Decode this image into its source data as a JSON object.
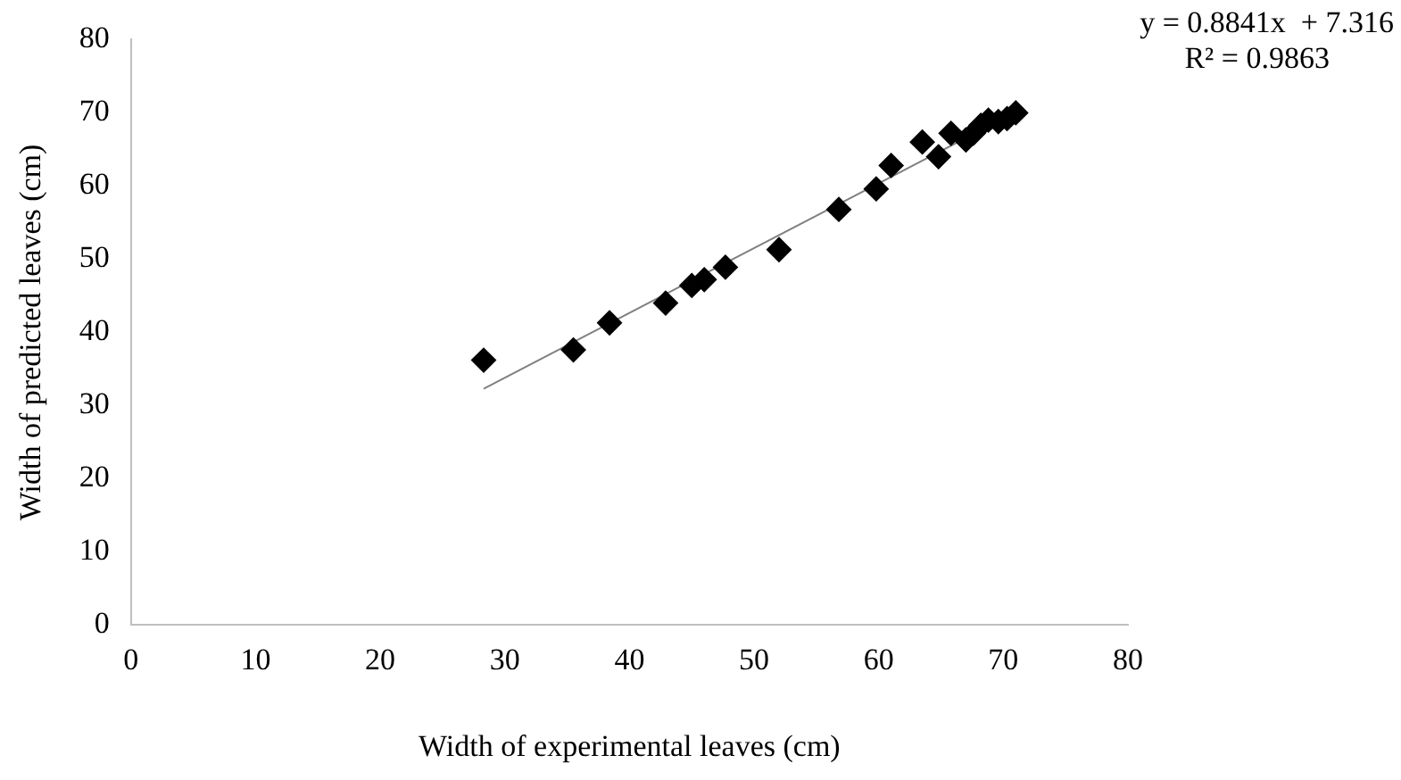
{
  "chart_data": {
    "type": "scatter",
    "xlabel": "Width of experimental leaves (cm)",
    "ylabel": "Width of predicted leaves (cm)",
    "annotations": [
      "y = 0.8841x  + 7.316",
      "R² = 0.9863"
    ],
    "series": [
      {
        "type": "scatter",
        "color": "#000000",
        "marker": "diamond",
        "x": [
          28.3,
          35.5,
          38.4,
          42.9,
          45,
          46,
          47.7,
          52,
          56.8,
          59.8,
          61,
          63.5,
          64.8,
          65.8,
          67,
          67.6,
          68.2,
          68.8,
          69.6,
          70.3,
          71
        ],
        "values": [
          36.2,
          37.6,
          41.3,
          44.0,
          46.4,
          47.2,
          48.9,
          51.3,
          56.8,
          59.6,
          62.8,
          66,
          64,
          67.2,
          66.3,
          67.2,
          68.3,
          69,
          68.8,
          69.2,
          70
        ]
      },
      {
        "type": "line",
        "color": "#808080",
        "marker": "none",
        "x": [
          28.3,
          71
        ],
        "values": [
          32.3,
          70.1
        ]
      }
    ],
    "xlim": [
      0,
      80
    ],
    "xticks": [
      0,
      10,
      20,
      30,
      40,
      50,
      60,
      70,
      80
    ],
    "ylim": [
      0,
      80
    ],
    "yticks": [
      0,
      10,
      20,
      30,
      40,
      50,
      60,
      70,
      80
    ],
    "grid": false,
    "legend": false
  }
}
